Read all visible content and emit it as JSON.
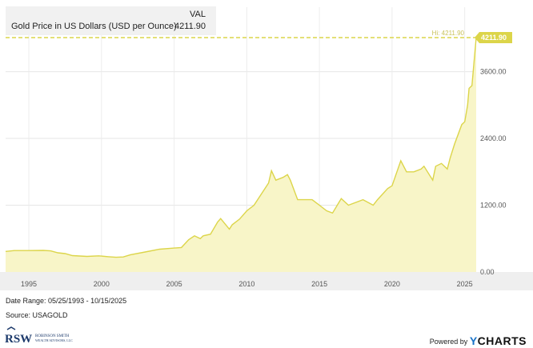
{
  "legend": {
    "header": "VAL",
    "series_name": "Gold Price in US Dollars (USD per Ounce)",
    "value": "4211.90"
  },
  "chart_data": {
    "type": "area",
    "y_ticks": [
      0,
      1200,
      2400,
      3600
    ],
    "y_tick_labels": [
      "0.00",
      "1200.00",
      "2400.00",
      "3600.00"
    ],
    "x_ticks": [
      1995,
      2000,
      2005,
      2010,
      2015,
      2020,
      2025
    ],
    "x_tick_labels": [
      "1995",
      "2000",
      "2005",
      "2010",
      "2015",
      "2020",
      "2025"
    ],
    "ylim": [
      0,
      4211.9
    ],
    "xlim": [
      1993.4,
      2025.79
    ],
    "high_label": "Hi: 4211.90",
    "last_value_label": "4211.90",
    "grid": true,
    "color": "#dcd54a",
    "fill_color": "#f8f5c8",
    "series": [
      {
        "x": [
          1993.4,
          1994.0,
          1995.0,
          1996.0,
          1996.5,
          1997.0,
          1997.5,
          1998.0,
          1999.0,
          1999.8,
          2000.5,
          2001.0,
          2001.5,
          2002.0,
          2003.0,
          2004.0,
          2005.0,
          2005.5,
          2006.0,
          2006.4,
          2006.8,
          2007.0,
          2007.5,
          2008.0,
          2008.2,
          2008.8,
          2009.0,
          2009.5,
          2010.0,
          2010.5,
          2011.0,
          2011.5,
          2011.7,
          2012.0,
          2012.5,
          2012.8,
          2013.0,
          2013.5,
          2014.0,
          2014.5,
          2015.0,
          2015.5,
          2015.9,
          2016.5,
          2017.0,
          2018.0,
          2018.7,
          2019.0,
          2019.7,
          2020.0,
          2020.6,
          2021.0,
          2021.5,
          2022.0,
          2022.2,
          2022.8,
          2023.0,
          2023.4,
          2023.8,
          2024.0,
          2024.3,
          2024.8,
          2025.0,
          2025.2,
          2025.3,
          2025.5,
          2025.79
        ],
        "y": [
          370,
          385,
          385,
          388,
          380,
          345,
          330,
          295,
          280,
          290,
          275,
          265,
          270,
          310,
          360,
          410,
          430,
          440,
          580,
          650,
          600,
          650,
          680,
          900,
          960,
          770,
          850,
          950,
          1100,
          1200,
          1400,
          1600,
          1820,
          1650,
          1700,
          1750,
          1650,
          1300,
          1300,
          1300,
          1200,
          1100,
          1060,
          1320,
          1200,
          1300,
          1200,
          1300,
          1500,
          1550,
          2000,
          1800,
          1800,
          1850,
          1900,
          1650,
          1900,
          1950,
          1850,
          2050,
          2300,
          2650,
          2700,
          3000,
          3300,
          3350,
          4211.9
        ]
      }
    ]
  },
  "footer": {
    "date_range": "Date Range: 05/25/1993 - 10/15/2025",
    "source": "Source: USAGOLD"
  },
  "logo": {
    "mark": "RSW",
    "line1": "ROBINSON SMITH",
    "line2": "WEALTH ADVISORS, LLC"
  },
  "powered_by": {
    "prefix": "Powered by",
    "brand_y": "Y",
    "brand_rest": "CHARTS"
  }
}
